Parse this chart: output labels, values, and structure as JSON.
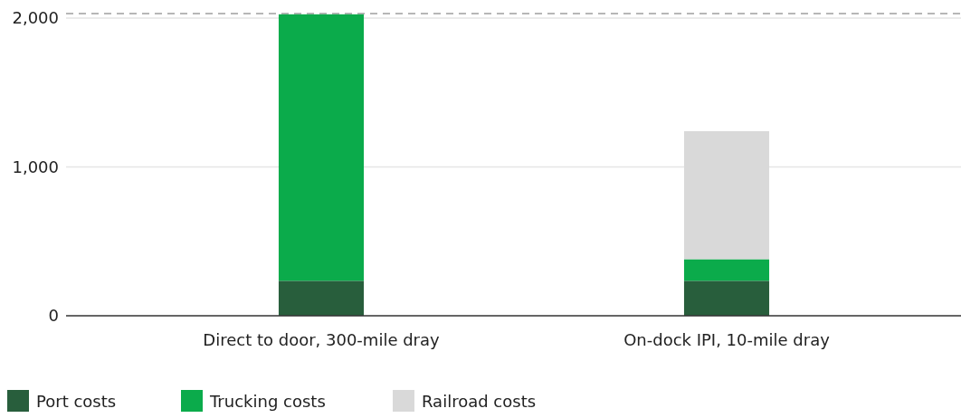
{
  "chart_data": {
    "type": "bar",
    "stacked": true,
    "categories": [
      "Direct to door, 300-mile dray",
      "On-dock IPI, 10-mile dray"
    ],
    "series": [
      {
        "name": "Port costs",
        "color": "#285e3c",
        "values": [
          235,
          235
        ]
      },
      {
        "name": "Trucking costs",
        "color": "#0bab4b",
        "values": [
          1790,
          145
        ]
      },
      {
        "name": "Railroad costs",
        "color": "#d9d9d9",
        "values": [
          0,
          860
        ]
      }
    ],
    "ylim": [
      0,
      2030
    ],
    "yticks": [
      {
        "value": 0,
        "label": "0"
      },
      {
        "value": 1000,
        "label": "1,000"
      },
      {
        "value": 2000,
        "label": "2,000"
      }
    ],
    "grid": "y",
    "legend": "bottom",
    "ref_lines": [
      {
        "axis": "y",
        "value": 2030,
        "label": null,
        "color": "#9e9e9e",
        "line_style": "dashed"
      }
    ]
  }
}
